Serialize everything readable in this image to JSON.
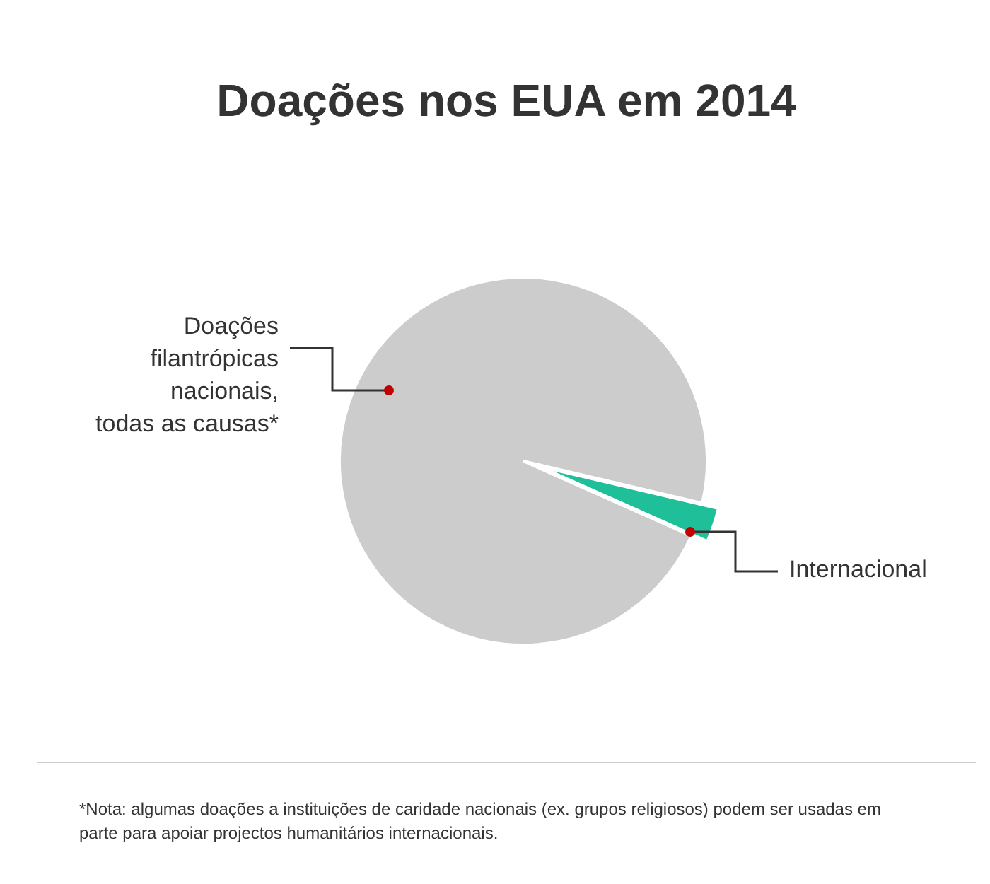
{
  "chart_data": {
    "type": "pie",
    "title": "Doações nos EUA em 2014",
    "categories": [
      "Doações\nfilantrópicas\nnacionais,\ntodas as causas*",
      "Internacional"
    ],
    "values": [
      97,
      3
    ],
    "colors": [
      "#cccccc",
      "#1fbf9a"
    ],
    "annotations": [
      "*Nota: algumas doações a instituições de caridade nacionais (ex. grupos religiosos) podem ser usadas em parte para apoiar projectos humanitários internacionais."
    ]
  }
}
